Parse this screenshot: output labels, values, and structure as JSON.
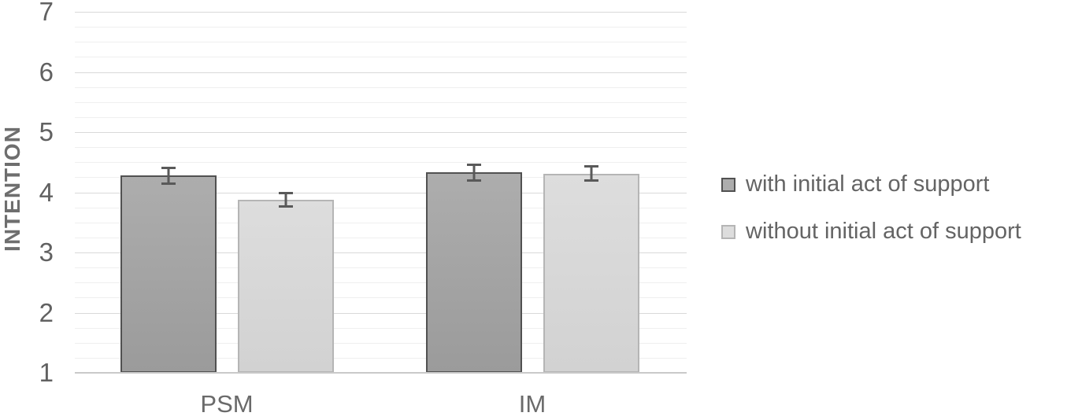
{
  "chart_data": {
    "type": "bar",
    "title": "",
    "xlabel": "",
    "ylabel": "INTENTION",
    "categories": [
      "PSM",
      "IM"
    ],
    "series": [
      {
        "name": "with initial act of support",
        "values": [
          4.28,
          4.33
        ],
        "errors": [
          0.15,
          0.15
        ],
        "fill_top": "#adadad",
        "fill_bottom": "#9b9b9b",
        "border": "#515151"
      },
      {
        "name": "without initial act of support",
        "values": [
          3.88,
          4.31
        ],
        "errors": [
          0.13,
          0.14
        ],
        "fill_top": "#dddddd",
        "fill_bottom": "#d2d2d2",
        "border": "#b5b5b5"
      }
    ],
    "ylim": [
      1,
      7
    ],
    "yticks": [
      1,
      2,
      3,
      4,
      5,
      6,
      7
    ],
    "minor_grid_step": 0.25,
    "grid": "horizontal, major and minor lines",
    "legend_position": "right",
    "error_bars": "symmetric, cap ends",
    "colors": {
      "background": "#ffffff",
      "major_gridline": "#d9d9d9",
      "minor_gridline": "#efefef",
      "axis_line": "#c9c9c9",
      "error_bar": "#595959",
      "tick_text": "#616161",
      "axis_title_text": "#6e6e6e",
      "legend_text": "#646464"
    }
  }
}
